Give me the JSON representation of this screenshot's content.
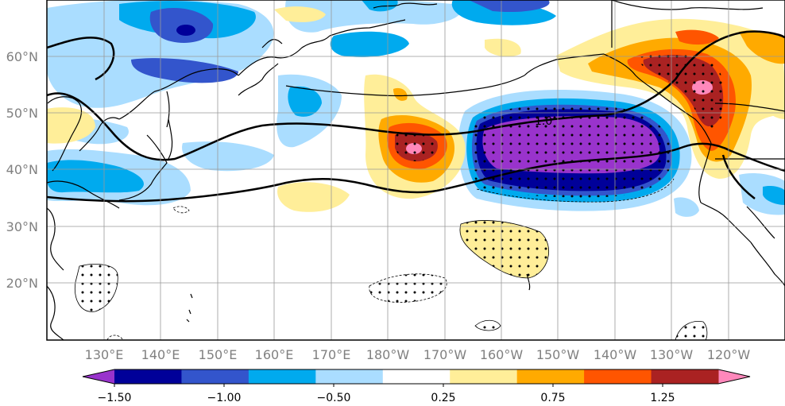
{
  "map": {
    "lat_labels": [
      "60°N",
      "50°N",
      "40°N",
      "30°N",
      "20°N"
    ],
    "lon_labels": [
      "130°E",
      "140°E",
      "150°E",
      "160°E",
      "170°E",
      "180°W",
      "170°W",
      "160°W",
      "150°W",
      "140°W",
      "130°W",
      "120°W"
    ],
    "contour_label": "1.0",
    "grid": true
  },
  "colorbar": {
    "colors": [
      "#9933cc",
      "#000099",
      "#3355cc",
      "#00aaee",
      "#aaddff",
      "#ffffff",
      "#ffee99",
      "#ffaa00",
      "#ff5500",
      "#aa2222",
      "#ff88bb"
    ],
    "tick_labels": [
      "−1.50",
      "−1.00",
      "−0.50",
      "0.25",
      "0.75",
      "1.25"
    ],
    "extend": "both"
  }
}
